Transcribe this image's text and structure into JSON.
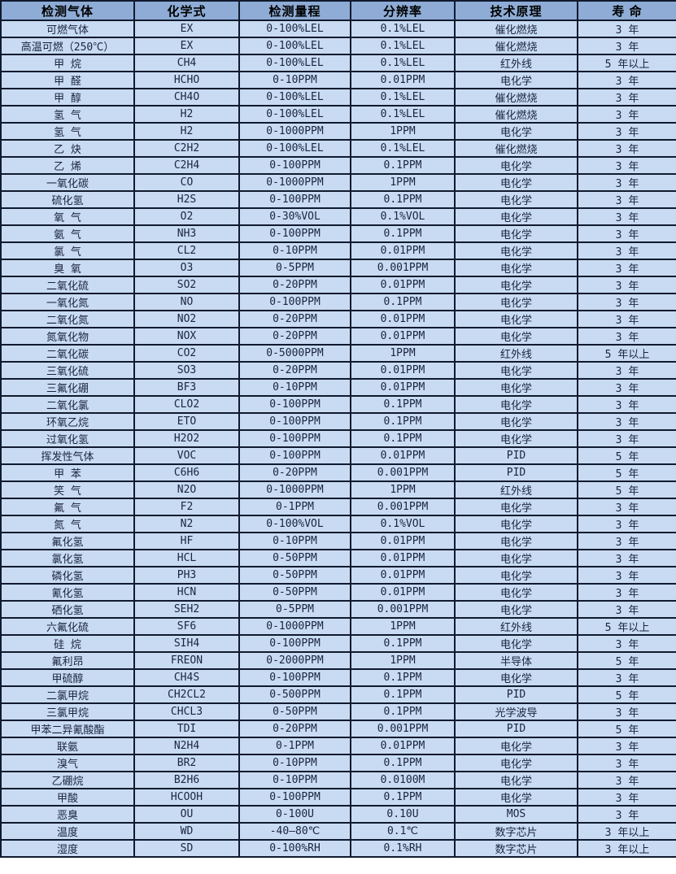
{
  "table": {
    "columns": [
      {
        "key": "gas",
        "label": "检测气体"
      },
      {
        "key": "formula",
        "label": "化学式"
      },
      {
        "key": "range",
        "label": "检测量程"
      },
      {
        "key": "resolution",
        "label": "分辨率"
      },
      {
        "key": "principle",
        "label": "技术原理"
      },
      {
        "key": "life",
        "label": "寿 命"
      }
    ],
    "rows": [
      [
        "可燃气体",
        "EX",
        "0-100%LEL",
        "0.1%LEL",
        "催化燃烧",
        "3 年"
      ],
      [
        "高温可燃（250℃）",
        "EX",
        "0-100%LEL",
        "0.1%LEL",
        "催化燃烧",
        "3 年"
      ],
      [
        "甲 烷",
        "CH4",
        "0-100%LEL",
        "0.1%LEL",
        "红外线",
        "5 年以上"
      ],
      [
        "甲 醛",
        "HCHO",
        "0-10PPM",
        "0.01PPM",
        "电化学",
        "3 年"
      ],
      [
        "甲 醇",
        "CH4O",
        "0-100%LEL",
        "0.1%LEL",
        "催化燃烧",
        "3 年"
      ],
      [
        "氢 气",
        "H2",
        "0-100%LEL",
        "0.1%LEL",
        "催化燃烧",
        "3 年"
      ],
      [
        "氢 气",
        "H2",
        "0-1000PPM",
        "1PPM",
        "电化学",
        "3 年"
      ],
      [
        "乙 炔",
        "C2H2",
        "0-100%LEL",
        "0.1%LEL",
        "催化燃烧",
        "3 年"
      ],
      [
        "乙 烯",
        "C2H4",
        "0-100PPM",
        "0.1PPM",
        "电化学",
        "3 年"
      ],
      [
        "一氧化碳",
        "CO",
        "0-1000PPM",
        "1PPM",
        "电化学",
        "3 年"
      ],
      [
        "硫化氢",
        "H2S",
        "0-100PPM",
        "0.1PPM",
        "电化学",
        "3 年"
      ],
      [
        "氧 气",
        "O2",
        "0-30%VOL",
        "0.1%VOL",
        "电化学",
        "3 年"
      ],
      [
        "氨 气",
        "NH3",
        "0-100PPM",
        "0.1PPM",
        "电化学",
        "3 年"
      ],
      [
        "氯 气",
        "CL2",
        "0-10PPM",
        "0.01PPM",
        "电化学",
        "3 年"
      ],
      [
        "臭 氧",
        "O3",
        "0-5PPM",
        "0.001PPM",
        "电化学",
        "3 年"
      ],
      [
        "二氧化硫",
        "SO2",
        "0-20PPM",
        "0.01PPM",
        "电化学",
        "3 年"
      ],
      [
        "一氧化氮",
        "NO",
        "0-100PPM",
        "0.1PPM",
        "电化学",
        "3 年"
      ],
      [
        "二氧化氮",
        "NO2",
        "0-20PPM",
        "0.01PPM",
        "电化学",
        "3 年"
      ],
      [
        "氮氧化物",
        "NOX",
        "0-20PPM",
        "0.01PPM",
        "电化学",
        "3 年"
      ],
      [
        "二氧化碳",
        "CO2",
        "0-5000PPM",
        "1PPM",
        "红外线",
        "5 年以上"
      ],
      [
        "三氧化硫",
        "SO3",
        "0-20PPM",
        "0.01PPM",
        "电化学",
        "3 年"
      ],
      [
        "三氟化硼",
        "BF3",
        "0-10PPM",
        "0.01PPM",
        "电化学",
        "3 年"
      ],
      [
        "二氧化氯",
        "CLO2",
        "0-100PPM",
        "0.1PPM",
        "电化学",
        "3 年"
      ],
      [
        "环氧乙烷",
        "ETO",
        "0-100PPM",
        "0.1PPM",
        "电化学",
        "3 年"
      ],
      [
        "过氧化氢",
        "H2O2",
        "0-100PPM",
        "0.1PPM",
        "电化学",
        "3 年"
      ],
      [
        "挥发性气体",
        "VOC",
        "0-100PPM",
        "0.01PPM",
        "PID",
        "5 年"
      ],
      [
        "甲 苯",
        "C6H6",
        "0-20PPM",
        "0.001PPM",
        "PID",
        "5 年"
      ],
      [
        "笑 气",
        "N2O",
        "0-1000PPM",
        "1PPM",
        "红外线",
        "5 年"
      ],
      [
        "氟 气",
        "F2",
        "0-1PPM",
        "0.001PPM",
        "电化学",
        "3 年"
      ],
      [
        "氮 气",
        "N2",
        "0-100%VOL",
        "0.1%VOL",
        "电化学",
        "3 年"
      ],
      [
        "氟化氢",
        "HF",
        "0-10PPM",
        "0.01PPM",
        "电化学",
        "3 年"
      ],
      [
        "氯化氢",
        "HCL",
        "0-50PPM",
        "0.01PPM",
        "电化学",
        "3 年"
      ],
      [
        "磷化氢",
        "PH3",
        "0-50PPM",
        "0.01PPM",
        "电化学",
        "3 年"
      ],
      [
        "氰化氢",
        "HCN",
        "0-50PPM",
        "0.01PPM",
        "电化学",
        "3 年"
      ],
      [
        "硒化氢",
        "SEH2",
        "0-5PPM",
        "0.001PPM",
        "电化学",
        "3 年"
      ],
      [
        "六氟化硫",
        "SF6",
        "0-1000PPM",
        "1PPM",
        "红外线",
        "5 年以上"
      ],
      [
        "硅 烷",
        "SIH4",
        "0-100PPM",
        "0.1PPM",
        "电化学",
        "3 年"
      ],
      [
        "氟利昂",
        "FREON",
        "0-2000PPM",
        "1PPM",
        "半导体",
        "5 年"
      ],
      [
        "甲硫醇",
        "CH4S",
        "0-100PPM",
        "0.1PPM",
        "电化学",
        "3 年"
      ],
      [
        "二氯甲烷",
        "CH2CL2",
        "0-500PPM",
        "0.1PPM",
        "PID",
        "5 年"
      ],
      [
        "三氯甲烷",
        "CHCL3",
        "0-50PPM",
        "0.1PPM",
        "光学波导",
        "3 年"
      ],
      [
        "甲苯二异氰酸酯",
        "TDI",
        "0-20PPM",
        "0.001PPM",
        "PID",
        "5 年"
      ],
      [
        "联氨",
        "N2H4",
        "0-1PPM",
        "0.01PPM",
        "电化学",
        "3 年"
      ],
      [
        "溴气",
        "BR2",
        "0-10PPM",
        "0.1PPM",
        "电化学",
        "3 年"
      ],
      [
        "乙硼烷",
        "B2H6",
        "0-10PPM",
        "0.0100M",
        "电化学",
        "3 年"
      ],
      [
        "甲酸",
        "HCOOH",
        "0-100PPM",
        "0.1PPM",
        "电化学",
        "3 年"
      ],
      [
        "恶臭",
        "OU",
        "0-100U",
        "0.10U",
        "MOS",
        "3 年"
      ],
      [
        "温度",
        "WD",
        "-40—80℃",
        "0.1℃",
        "数字芯片",
        "3 年以上"
      ],
      [
        "湿度",
        "SD",
        "0-100%RH",
        "0.1%RH",
        "数字芯片",
        "3 年以上"
      ]
    ],
    "colors": {
      "header_bg": "#8eacd5",
      "row_bg": "#c8dbf2",
      "border": "#101a2e",
      "text": "#1b2440",
      "header_text": "#000000"
    }
  }
}
